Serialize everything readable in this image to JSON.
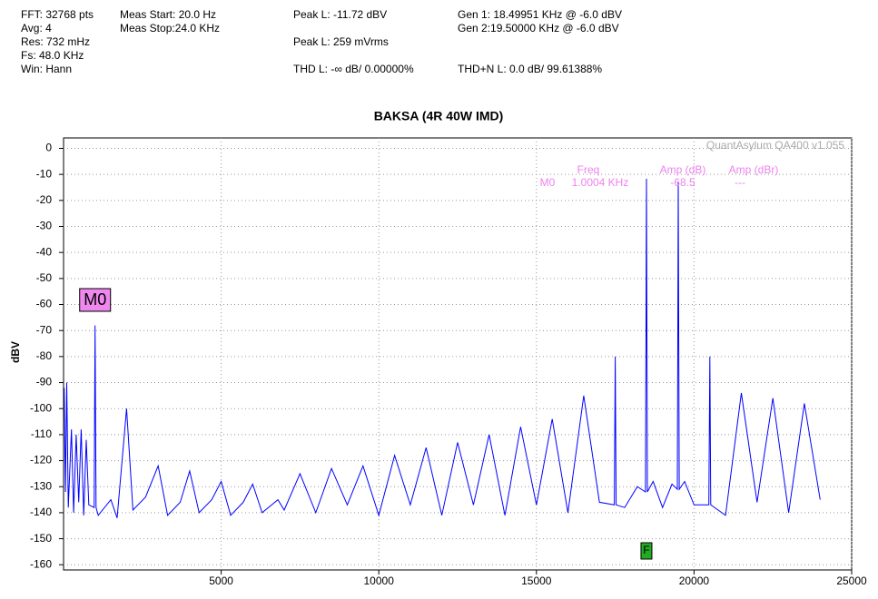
{
  "header": {
    "fft": "FFT: 32768 pts",
    "avg": "Avg: 4",
    "res": "Res: 732 mHz",
    "fs": "Fs: 48.0 KHz",
    "win": "Win: Hann",
    "meas_start": "Meas Start: 20.0 Hz",
    "meas_stop": "Meas Stop:24.0 KHz",
    "peak_l_dbv": "Peak L: -11.72 dBV",
    "peak_l_rms": "Peak L: 259 mVrms",
    "thd": "THD L: -∞ dB/ 0.00000%",
    "thdn": "THD+N L: 0.0 dB/ 99.61388%",
    "gen1": "Gen 1: 18.49951 KHz @ -6.0  dBV",
    "gen2": "Gen 2:19.50000 KHz @ -6.0  dBV"
  },
  "chart_data": {
    "type": "line",
    "title": "BAKSA (4R 40W IMD)",
    "y_label": "dBV",
    "watermark": "QuantAsylum QA400 v1.055",
    "marker_table": {
      "headers": [
        "Freq",
        "Amp (dB)",
        "Amp (dBr)"
      ],
      "rows": [
        [
          "M0",
          "1.0004 KHz",
          "-68.5",
          "---"
        ]
      ]
    },
    "marker_x": 1000,
    "f_marker": "F",
    "f_marker_x": 18490,
    "color": "#0000ff",
    "grid": true,
    "xlim": [
      0,
      25000
    ],
    "xticks": [
      5000,
      10000,
      15000,
      20000,
      25000
    ],
    "ylim": [
      -162,
      4
    ],
    "yticks": [
      0,
      -10,
      -20,
      -30,
      -40,
      -50,
      -60,
      -70,
      -80,
      -90,
      -100,
      -110,
      -120,
      -130,
      -140,
      -150,
      -160
    ],
    "x": [
      20,
      60,
      100,
      150,
      250,
      320,
      400,
      480,
      560,
      640,
      720,
      800,
      970,
      1000,
      1030,
      1100,
      1500,
      1700,
      2000,
      2200,
      2600,
      3000,
      3300,
      3700,
      4000,
      4300,
      4700,
      5000,
      5300,
      5700,
      6000,
      6300,
      6800,
      7000,
      7500,
      8000,
      8500,
      9000,
      9500,
      10000,
      10500,
      11000,
      11500,
      12000,
      12500,
      13000,
      13500,
      14000,
      14500,
      15000,
      15500,
      16000,
      16500,
      17000,
      17470,
      17500,
      17530,
      17800,
      18200,
      18460,
      18490,
      18520,
      18700,
      19000,
      19300,
      19470,
      19500,
      19530,
      19700,
      20000,
      20470,
      20500,
      20530,
      21000,
      21500,
      22000,
      22500,
      23000,
      23500,
      24000
    ],
    "values": [
      -92,
      -132,
      -90,
      -138,
      -108,
      -140,
      -110,
      -136,
      -108,
      -141,
      -112,
      -137,
      -138,
      -68,
      -138,
      -141,
      -135,
      -142,
      -100,
      -139,
      -134,
      -122,
      -141,
      -136,
      -124,
      -140,
      -135,
      -128,
      -141,
      -136,
      -129,
      -140,
      -135,
      -139,
      -125,
      -140,
      -123,
      -137,
      -122,
      -141,
      -118,
      -137,
      -115,
      -141,
      -113,
      -137,
      -110,
      -141,
      -107,
      -137,
      -104,
      -140,
      -95,
      -136,
      -137,
      -80,
      -137,
      -138,
      -130,
      -132,
      -11.7,
      -132,
      -128,
      -138,
      -129,
      -131,
      -13,
      -131,
      -128,
      -137,
      -137,
      -80,
      -137,
      -141,
      -94,
      -136,
      -96,
      -140,
      -98,
      -135
    ]
  }
}
